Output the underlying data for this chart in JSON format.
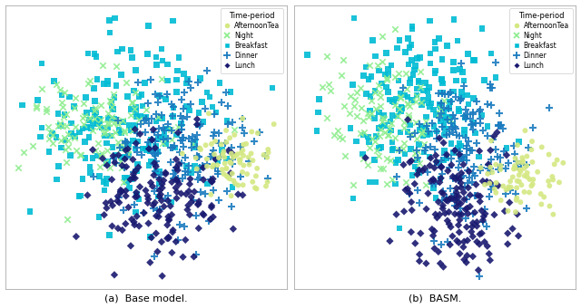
{
  "title_a": "(a)  Base model.",
  "title_b": "(b)  BASM.",
  "legend_title": "Time-period",
  "categories": [
    "AfternoonTea",
    "Night",
    "Breakfast",
    "Dinner",
    "Lunch"
  ],
  "colors": [
    "#d4e882",
    "#90ee90",
    "#00bcd4",
    "#1a7bbf",
    "#191970"
  ],
  "figsize": [
    6.4,
    3.4
  ],
  "dpi": 100,
  "background": "#ffffff",
  "facecolor": "#ffffff"
}
